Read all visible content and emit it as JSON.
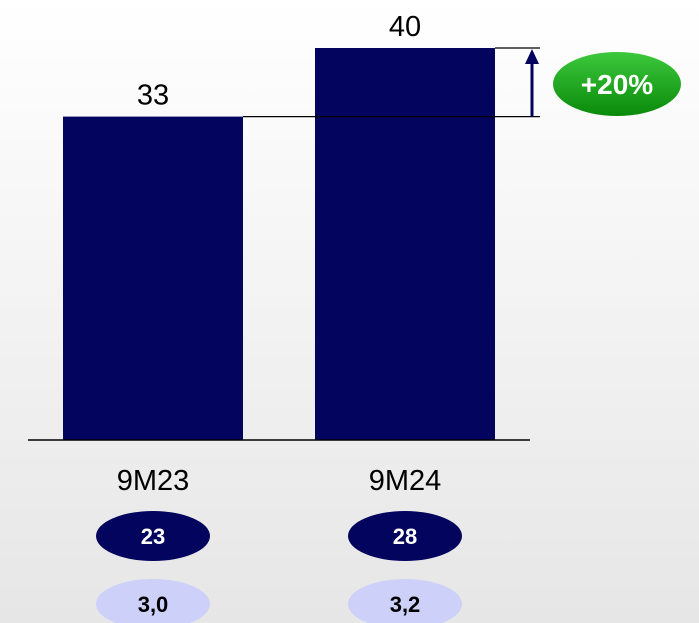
{
  "chart_data": {
    "type": "bar",
    "categories": [
      "9M23",
      "9M24"
    ],
    "values": [
      33,
      40
    ],
    "ylim": [
      0,
      40
    ],
    "grid": false,
    "bar_color": "#03045e",
    "growth": {
      "label": "+20%",
      "color": "#0ea10e"
    },
    "badge_rows": [
      {
        "values": [
          "23",
          "28"
        ],
        "fill": "#03045e",
        "text_color": "#ffffff"
      },
      {
        "values": [
          "3,0",
          "3,2"
        ],
        "fill": "#cdd0f8",
        "text_color": "#000000"
      }
    ]
  }
}
